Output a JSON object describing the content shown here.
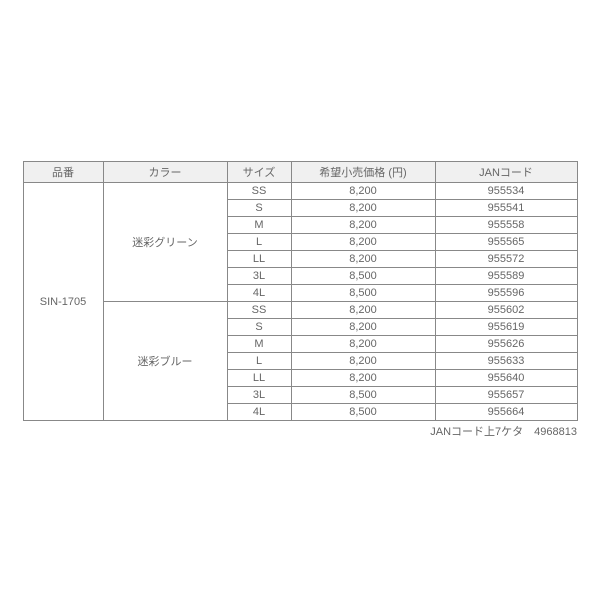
{
  "headers": {
    "product": "品番",
    "color": "カラー",
    "size": "サイズ",
    "price": "希望小売価格 (円)",
    "jan": "JANコード"
  },
  "product_code": "SIN-1705",
  "sizes": [
    "SS",
    "S",
    "M",
    "L",
    "LL",
    "3L",
    "4L"
  ],
  "colors": [
    {
      "name": "迷彩グリーン",
      "rows": [
        {
          "price": "8,200",
          "jan": "955534"
        },
        {
          "price": "8,200",
          "jan": "955541"
        },
        {
          "price": "8,200",
          "jan": "955558"
        },
        {
          "price": "8,200",
          "jan": "955565"
        },
        {
          "price": "8,200",
          "jan": "955572"
        },
        {
          "price": "8,500",
          "jan": "955589"
        },
        {
          "price": "8,500",
          "jan": "955596"
        }
      ]
    },
    {
      "name": "迷彩ブルー",
      "rows": [
        {
          "price": "8,200",
          "jan": "955602"
        },
        {
          "price": "8,200",
          "jan": "955619"
        },
        {
          "price": "8,200",
          "jan": "955626"
        },
        {
          "price": "8,200",
          "jan": "955633"
        },
        {
          "price": "8,200",
          "jan": "955640"
        },
        {
          "price": "8,500",
          "jan": "955657"
        },
        {
          "price": "8,500",
          "jan": "955664"
        }
      ]
    }
  ],
  "footnote": "JANコード上7ケタ　4968813"
}
